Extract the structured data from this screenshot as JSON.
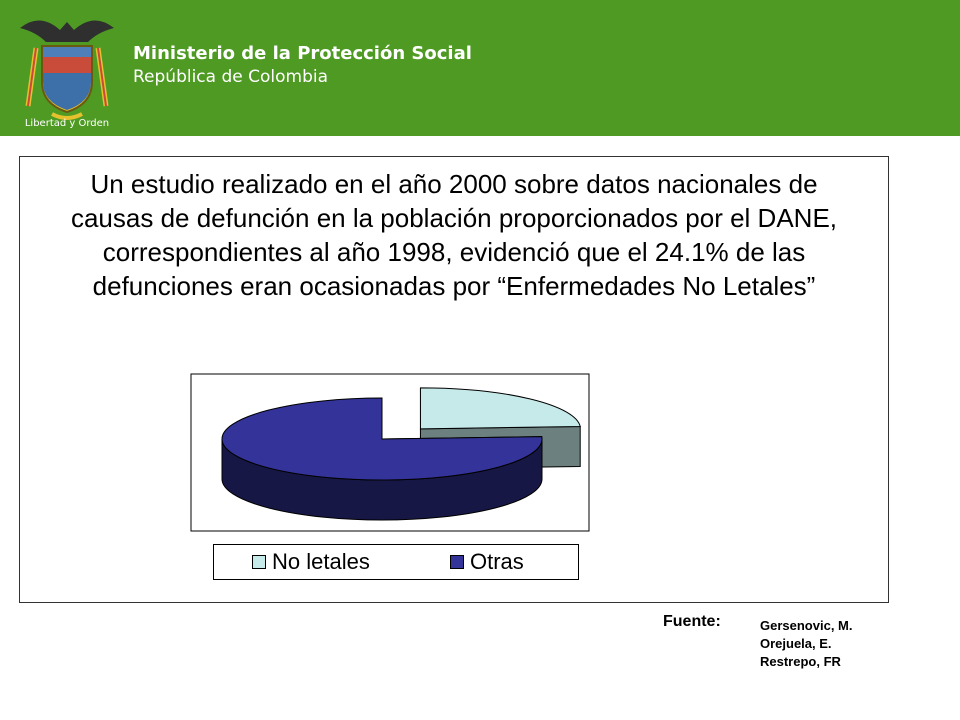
{
  "header": {
    "org_name": "Ministerio de la Protección Social",
    "country": "República de Colombia",
    "logo_motto": "Libertad y Orden",
    "background": "#4e9a23"
  },
  "main": {
    "text": "Un estudio realizado en el año 2000 sobre datos nacionales de causas de defunción en la población proporcionados por el DANE, correspondientes al año 1998, evidenció que el 24.1% de las defunciones eran ocasionadas por “Enfermedades No Letales”"
  },
  "chart_data": {
    "type": "pie",
    "style": "3d-exploded",
    "categories": [
      "No letales",
      "Otras"
    ],
    "values": [
      24.1,
      75.9
    ],
    "colors": [
      "#c6e9e9",
      "#333399"
    ],
    "legend_position": "bottom",
    "title": ""
  },
  "source": {
    "label": "Fuente:",
    "authors": [
      "Gersenovic, M.",
      "Orejuela, E.",
      "Restrepo, FR"
    ]
  }
}
